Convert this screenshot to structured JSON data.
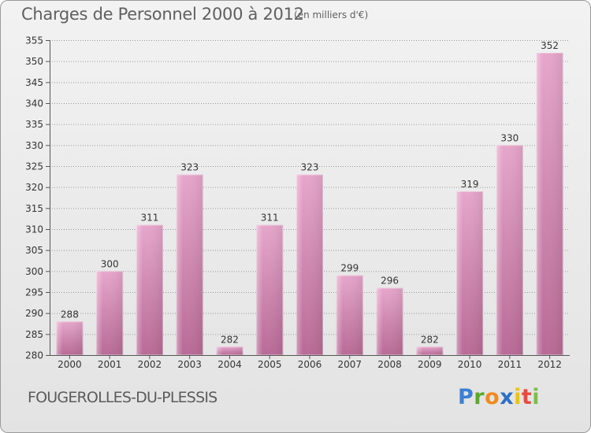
{
  "title": "Charges de Personnel 2000 à 2012",
  "subtitle": "(en milliers d'€)",
  "commune": "FOUGEROLLES-DU-PLESSIS",
  "logo": {
    "letters": [
      "P",
      "r",
      "o",
      "x",
      "i",
      "t",
      "i"
    ],
    "colors": [
      "#3d7fd4",
      "#5aaa2a",
      "#f08a1c",
      "#2d6fc6",
      "#e9c21a",
      "#e94a3c",
      "#7ac143"
    ]
  },
  "colors": {
    "bar": "#c77aa6",
    "bar_light": "#e6a6cb",
    "grid": "#9a9a9a",
    "axis_text": "#333333"
  },
  "chart_data": {
    "type": "bar",
    "categories": [
      "2000",
      "2001",
      "2002",
      "2003",
      "2004",
      "2005",
      "2006",
      "2007",
      "2008",
      "2009",
      "2010",
      "2011",
      "2012"
    ],
    "values": [
      288,
      300,
      311,
      323,
      282,
      311,
      323,
      299,
      296,
      282,
      319,
      330,
      352
    ],
    "title": "Charges de Personnel 2000 à 2012",
    "xlabel": "",
    "ylabel": "",
    "ylim": [
      280,
      355
    ],
    "yticks": [
      280,
      285,
      290,
      295,
      300,
      305,
      310,
      315,
      320,
      325,
      330,
      335,
      340,
      345,
      350,
      355
    ],
    "grid": true
  }
}
